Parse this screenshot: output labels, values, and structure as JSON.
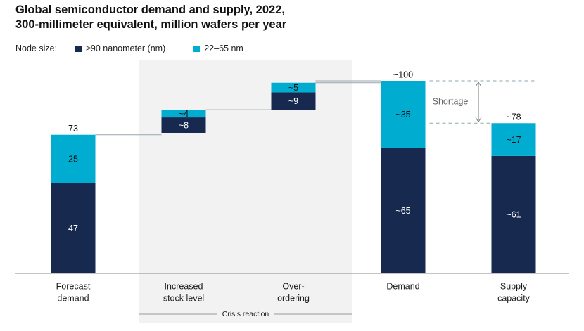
{
  "title_line1": "Global semiconductor demand and supply, 2022,",
  "title_line2": "300-millimeter equivalent, million wafers per year",
  "legend": {
    "label": "Node size:",
    "items": [
      {
        "name": "≥90 nanometer (nm)",
        "color": "#17294f"
      },
      {
        "name": "22–65 nm",
        "color": "#00acd0"
      }
    ]
  },
  "colors": {
    "dark": "#17294f",
    "cyan": "#00acd0",
    "shade": "#f2f2f2",
    "connector": "#9aa6ad",
    "dashed": "#8fa5b3"
  },
  "chart_data": {
    "type": "bar",
    "subtype": "waterfall-stacked",
    "categories": [
      {
        "line1": "Forecast",
        "line2": "demand"
      },
      {
        "line1": "Increased",
        "line2": "stock level"
      },
      {
        "line1": "Over-",
        "line2": "ordering"
      },
      {
        "line1": "Demand",
        "line2": ""
      },
      {
        "line1": "Supply",
        "line2": "capacity"
      }
    ],
    "series": [
      {
        "name": "≥90 nanometer (nm)",
        "values": [
          47,
          8,
          9,
          65,
          61
        ],
        "labels": [
          "47",
          "~8",
          "~9",
          "~65",
          "~61"
        ]
      },
      {
        "name": "22–65 nm",
        "values": [
          25,
          4,
          5,
          35,
          17
        ],
        "labels": [
          "25",
          "~4",
          "~5",
          "~35",
          "~17"
        ]
      }
    ],
    "bases": [
      0,
      73,
      85,
      0,
      0
    ],
    "totals": [
      73,
      null,
      null,
      100,
      78
    ],
    "total_labels": [
      "73",
      "",
      "",
      "~100",
      "~78"
    ],
    "ylim": [
      0,
      100
    ],
    "shaded_group": {
      "label": "Crisis reaction",
      "categories": [
        1,
        2
      ]
    },
    "annotation": "Shortage"
  }
}
